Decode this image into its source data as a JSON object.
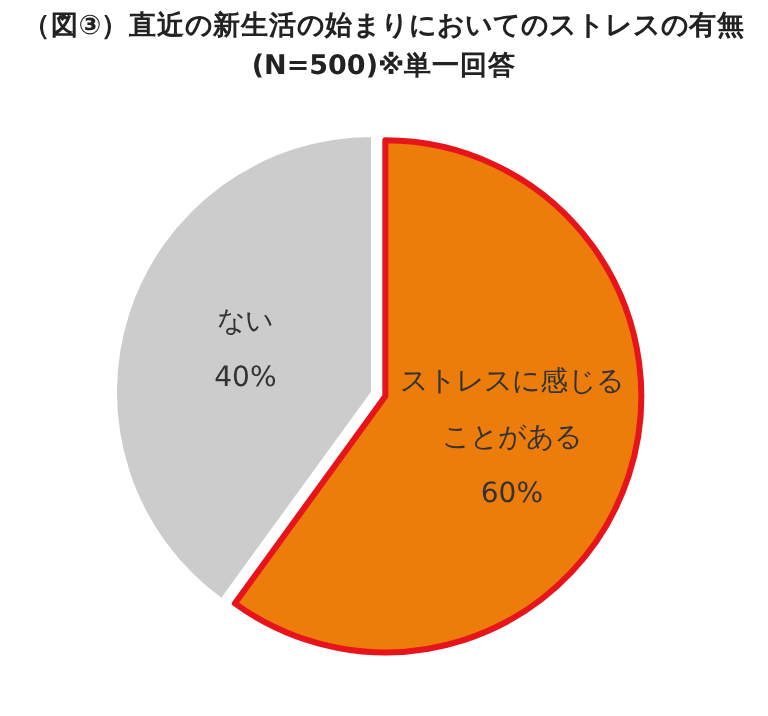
{
  "chart_data": {
    "type": "pie",
    "title": "（図③）直近の新生活の始まりにおいてのストレスの有無",
    "subtitle": "(N=500)※単一回答",
    "categories": [
      "ストレスに感じることがある",
      "ない"
    ],
    "values": [
      60,
      40
    ],
    "colors": [
      "#ed7d0b",
      "#cccccc"
    ],
    "value_labels": [
      "60%",
      "40%"
    ]
  }
}
